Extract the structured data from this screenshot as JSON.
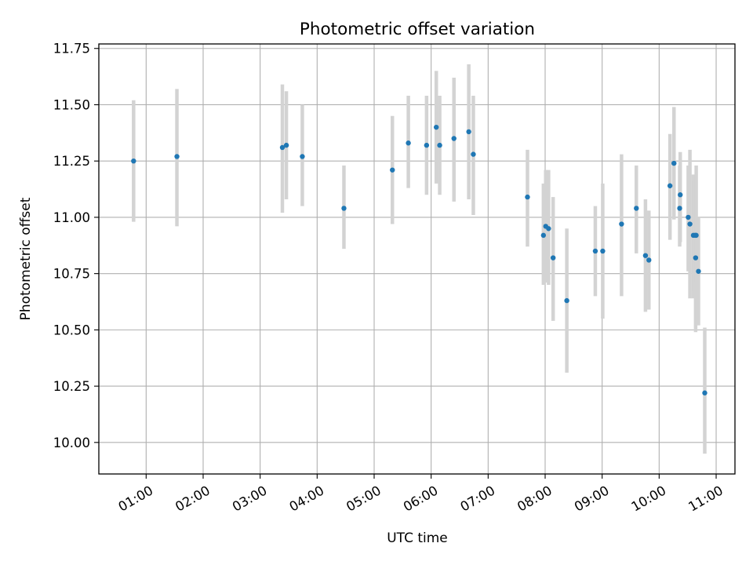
{
  "chart_data": {
    "type": "scatter",
    "title": "Photometric offset variation",
    "xlabel": "UTC time",
    "ylabel": "Photometric offset",
    "xlim_hours": [
      0.17,
      11.33
    ],
    "ylim": [
      9.86,
      11.77
    ],
    "grid": true,
    "x_ticks": [
      {
        "value": 1,
        "label": "01:00"
      },
      {
        "value": 2,
        "label": "02:00"
      },
      {
        "value": 3,
        "label": "03:00"
      },
      {
        "value": 4,
        "label": "04:00"
      },
      {
        "value": 5,
        "label": "05:00"
      },
      {
        "value": 6,
        "label": "06:00"
      },
      {
        "value": 7,
        "label": "07:00"
      },
      {
        "value": 8,
        "label": "08:00"
      },
      {
        "value": 9,
        "label": "09:00"
      },
      {
        "value": 10,
        "label": "10:00"
      },
      {
        "value": 11,
        "label": "11:00"
      }
    ],
    "y_ticks": [
      {
        "value": 10.0,
        "label": "10.00"
      },
      {
        "value": 10.25,
        "label": "10.25"
      },
      {
        "value": 10.5,
        "label": "10.50"
      },
      {
        "value": 10.75,
        "label": "10.75"
      },
      {
        "value": 11.0,
        "label": "11.00"
      },
      {
        "value": 11.25,
        "label": "11.25"
      },
      {
        "value": 11.5,
        "label": "11.50"
      },
      {
        "value": 11.75,
        "label": "11.75"
      }
    ],
    "colors": {
      "marker": "#1f77b4",
      "errorbar": "#d3d3d3",
      "grid": "#b0b0b0",
      "axes": "#000000"
    },
    "points": [
      {
        "x": 0.78,
        "y": 11.25,
        "lo": 10.98,
        "hi": 11.52
      },
      {
        "x": 1.54,
        "y": 11.27,
        "lo": 10.96,
        "hi": 11.57
      },
      {
        "x": 3.39,
        "y": 11.31,
        "lo": 11.02,
        "hi": 11.59
      },
      {
        "x": 3.46,
        "y": 11.32,
        "lo": 11.08,
        "hi": 11.56
      },
      {
        "x": 3.74,
        "y": 11.27,
        "lo": 11.05,
        "hi": 11.5
      },
      {
        "x": 4.47,
        "y": 11.04,
        "lo": 10.86,
        "hi": 11.23
      },
      {
        "x": 5.32,
        "y": 11.21,
        "lo": 10.97,
        "hi": 11.45
      },
      {
        "x": 5.6,
        "y": 11.33,
        "lo": 11.13,
        "hi": 11.54
      },
      {
        "x": 5.92,
        "y": 11.32,
        "lo": 11.1,
        "hi": 11.54
      },
      {
        "x": 6.09,
        "y": 11.4,
        "lo": 11.15,
        "hi": 11.65
      },
      {
        "x": 6.15,
        "y": 11.32,
        "lo": 11.1,
        "hi": 11.54
      },
      {
        "x": 6.4,
        "y": 11.35,
        "lo": 11.07,
        "hi": 11.62
      },
      {
        "x": 6.66,
        "y": 11.38,
        "lo": 11.08,
        "hi": 11.68
      },
      {
        "x": 6.74,
        "y": 11.28,
        "lo": 11.01,
        "hi": 11.54
      },
      {
        "x": 7.69,
        "y": 11.09,
        "lo": 10.87,
        "hi": 11.3
      },
      {
        "x": 7.97,
        "y": 10.92,
        "lo": 10.7,
        "hi": 11.15
      },
      {
        "x": 8.01,
        "y": 10.96,
        "lo": 10.71,
        "hi": 11.21
      },
      {
        "x": 8.06,
        "y": 10.95,
        "lo": 10.7,
        "hi": 11.21
      },
      {
        "x": 8.14,
        "y": 10.82,
        "lo": 10.54,
        "hi": 11.09
      },
      {
        "x": 8.38,
        "y": 10.63,
        "lo": 10.31,
        "hi": 10.95
      },
      {
        "x": 8.88,
        "y": 10.85,
        "lo": 10.65,
        "hi": 11.05
      },
      {
        "x": 9.01,
        "y": 10.85,
        "lo": 10.55,
        "hi": 11.15
      },
      {
        "x": 9.34,
        "y": 10.97,
        "lo": 10.65,
        "hi": 11.28
      },
      {
        "x": 9.6,
        "y": 11.04,
        "lo": 10.84,
        "hi": 11.23
      },
      {
        "x": 9.76,
        "y": 10.83,
        "lo": 10.58,
        "hi": 11.08
      },
      {
        "x": 9.82,
        "y": 10.81,
        "lo": 10.59,
        "hi": 11.03
      },
      {
        "x": 10.19,
        "y": 11.14,
        "lo": 10.9,
        "hi": 11.37
      },
      {
        "x": 10.26,
        "y": 11.24,
        "lo": 10.99,
        "hi": 11.49
      },
      {
        "x": 10.37,
        "y": 11.1,
        "lo": 10.89,
        "hi": 11.29
      },
      {
        "x": 10.36,
        "y": 11.04,
        "lo": 10.87,
        "hi": 11.23
      },
      {
        "x": 10.51,
        "y": 11.0,
        "lo": 10.76,
        "hi": 11.23
      },
      {
        "x": 10.54,
        "y": 10.97,
        "lo": 10.64,
        "hi": 11.3
      },
      {
        "x": 10.6,
        "y": 10.92,
        "lo": 10.64,
        "hi": 11.19
      },
      {
        "x": 10.63,
        "y": 10.92,
        "lo": 10.67,
        "hi": 11.16
      },
      {
        "x": 10.64,
        "y": 10.82,
        "lo": 10.49,
        "hi": 11.14
      },
      {
        "x": 10.65,
        "y": 10.92,
        "lo": 10.71,
        "hi": 11.23
      },
      {
        "x": 10.69,
        "y": 10.76,
        "lo": 10.52,
        "hi": 11.0
      },
      {
        "x": 10.8,
        "y": 10.22,
        "lo": 9.95,
        "hi": 10.51
      }
    ]
  }
}
